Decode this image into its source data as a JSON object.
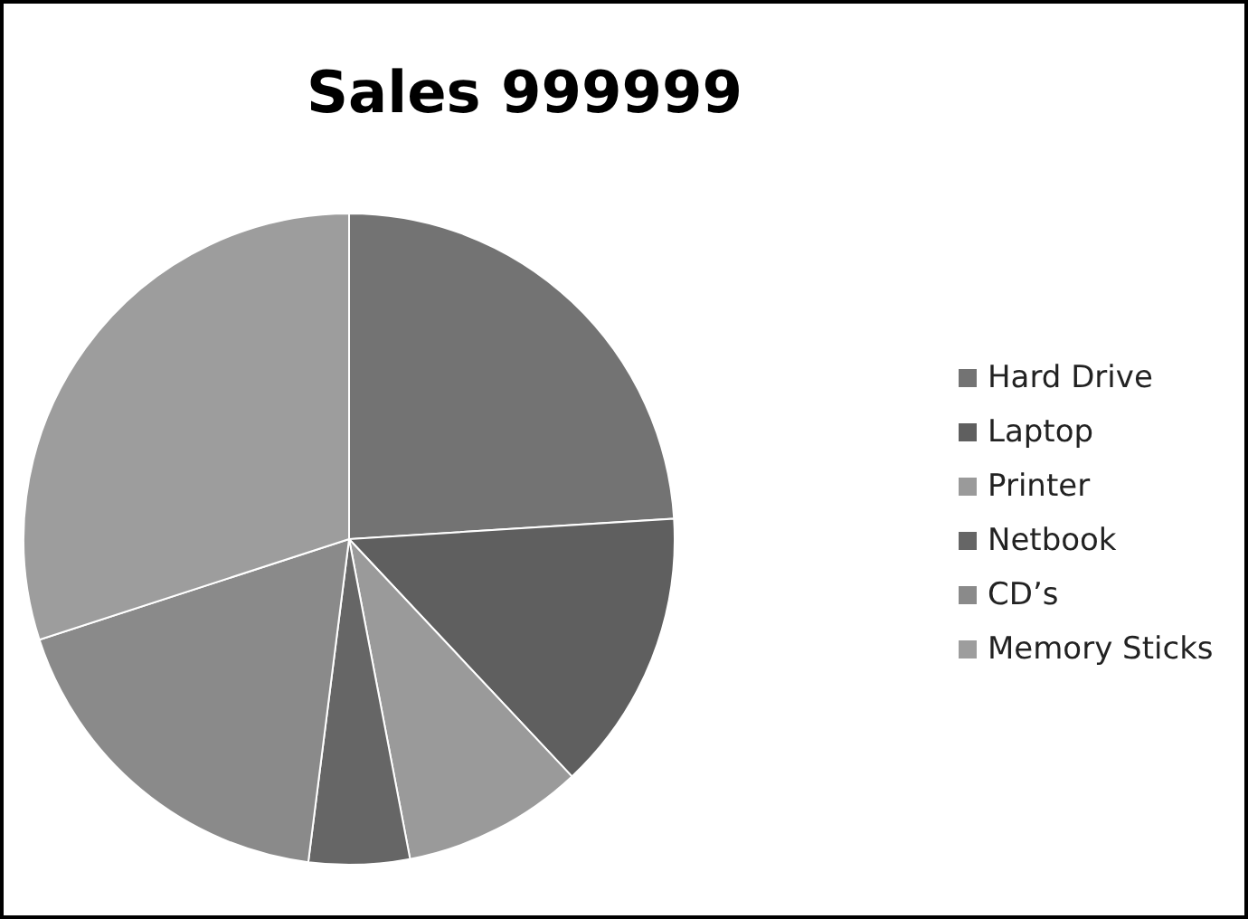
{
  "chart_data": {
    "type": "pie",
    "title": "Sales 999999",
    "categories": [
      "Hard Drive",
      "Laptop",
      "Printer",
      "Netbook",
      "CD’s",
      "Memory Sticks"
    ],
    "values": [
      24,
      14,
      9,
      5,
      18,
      30
    ],
    "colors": [
      "#737373",
      "#5f5f5f",
      "#9a9a9a",
      "#666666",
      "#8a8a8a",
      "#9d9d9d"
    ],
    "legend": "right"
  }
}
